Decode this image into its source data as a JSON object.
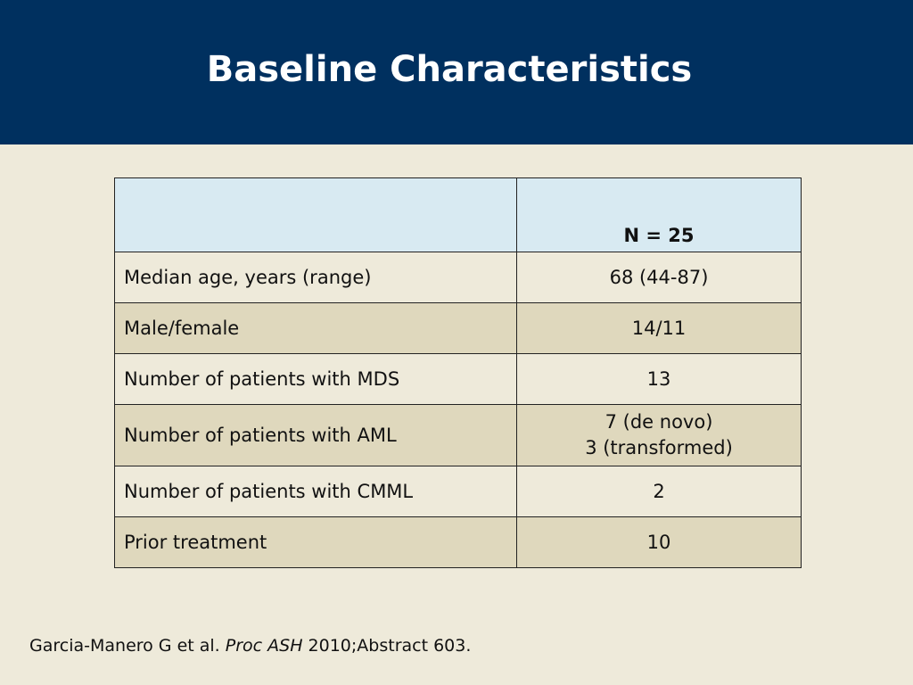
{
  "slide": {
    "title": "Baseline Characteristics",
    "colors": {
      "header_bg": "#00305F",
      "slide_bg": "#EEEADA",
      "table_header_bg": "#D8EAF2",
      "row_alt_bg": "#DFD8BD"
    }
  },
  "table": {
    "header": {
      "col1": "",
      "col2": "N = 25"
    },
    "rows": [
      {
        "label": "Median age, years (range)",
        "value_line1": "68 (44-87)",
        "value_line2": ""
      },
      {
        "label": "Male/female",
        "value_line1": "14/11",
        "value_line2": ""
      },
      {
        "label": "Number of patients with MDS",
        "value_line1": "13",
        "value_line2": ""
      },
      {
        "label": "Number of patients with AML",
        "value_line1": "7 (de novo)",
        "value_line2": "3 (transformed)"
      },
      {
        "label": "Number of patients with CMML",
        "value_line1": "2",
        "value_line2": ""
      },
      {
        "label": "Prior treatment",
        "value_line1": "10",
        "value_line2": ""
      }
    ]
  },
  "footer": {
    "authors": "Garcia-Manero G et al. ",
    "journal": "Proc ASH",
    "citation": " 2010;Abstract 603."
  }
}
